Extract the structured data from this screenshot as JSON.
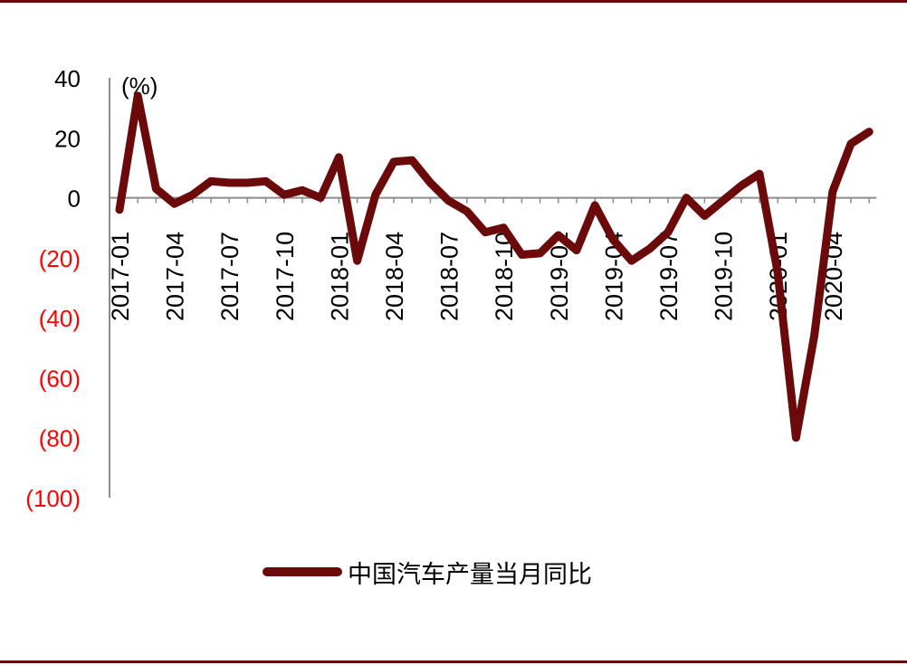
{
  "colors": {
    "frame": "#6b0a0a",
    "line": "#6b0a0a",
    "axis": "#8c8c8c",
    "positive_tick": "#000000",
    "negative_tick": "#ff0000"
  },
  "chart_data": {
    "type": "line",
    "unit_label": "(%)",
    "ylim": [
      -100,
      40
    ],
    "y_ticks": [
      {
        "value": 40,
        "label": "40"
      },
      {
        "value": 20,
        "label": "20"
      },
      {
        "value": 0,
        "label": "0"
      },
      {
        "value": -20,
        "label": "(20)"
      },
      {
        "value": -40,
        "label": "(40)"
      },
      {
        "value": -60,
        "label": "(60)"
      },
      {
        "value": -80,
        "label": "(80)"
      },
      {
        "value": -100,
        "label": "(100)"
      }
    ],
    "x_tick_labels": [
      "2017-01",
      "2017-04",
      "2017-07",
      "2017-10",
      "2018-01",
      "2018-04",
      "2018-07",
      "2018-10",
      "2019-01",
      "2019-04",
      "2019-07",
      "2019-10",
      "2020-01",
      "2020-04"
    ],
    "x": [
      "2017-01",
      "2017-02",
      "2017-03",
      "2017-04",
      "2017-05",
      "2017-06",
      "2017-07",
      "2017-08",
      "2017-09",
      "2017-10",
      "2017-11",
      "2017-12",
      "2018-01",
      "2018-02",
      "2018-03",
      "2018-04",
      "2018-05",
      "2018-06",
      "2018-07",
      "2018-08",
      "2018-09",
      "2018-10",
      "2018-11",
      "2018-12",
      "2019-01",
      "2019-02",
      "2019-03",
      "2019-04",
      "2019-05",
      "2019-06",
      "2019-07",
      "2019-08",
      "2019-09",
      "2019-10",
      "2019-11",
      "2019-12",
      "2020-01",
      "2020-02",
      "2020-03",
      "2020-04",
      "2020-05",
      "2020-06"
    ],
    "series": [
      {
        "name": "中国汽车产量当月同比",
        "values": [
          -4,
          34,
          3,
          -2,
          1,
          5.5,
          5,
          5,
          5.5,
          1,
          2.5,
          0,
          13.5,
          -21,
          1,
          12,
          12.5,
          5,
          -1,
          -4.5,
          -11.5,
          -10,
          -19,
          -18.5,
          -12.5,
          -17.5,
          -2.5,
          -14,
          -21,
          -17,
          -11.5,
          0,
          -6,
          -1,
          4,
          8,
          -25,
          -80,
          -46,
          2,
          18,
          22
        ]
      }
    ],
    "grid": false,
    "legend_position": "bottom"
  }
}
